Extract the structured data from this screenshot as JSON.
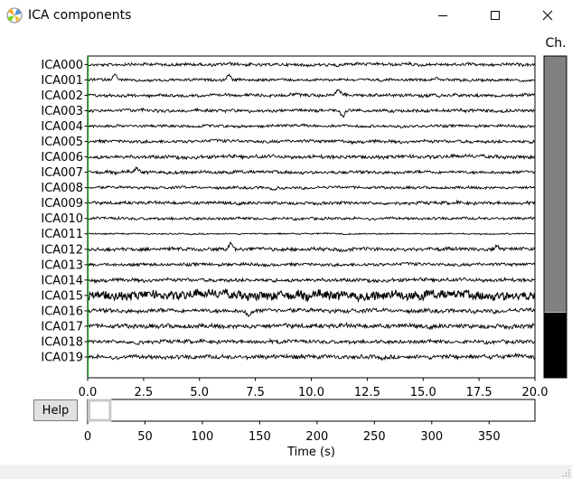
{
  "window": {
    "title": "ICA components",
    "icon": "matplotlib-icon",
    "controls": [
      "minimize-icon",
      "maximize-icon",
      "close-icon"
    ]
  },
  "channel_scrollbar": {
    "label": "Ch."
  },
  "help_button": {
    "label": "Help"
  },
  "colors": {
    "trace": "#000000",
    "cursor_line": "#00a000",
    "scroll_thumb": "#808080",
    "scroll_bottom": "#000000",
    "time_scroll_box": "#c8c8c8"
  },
  "chart_data": [
    {
      "type": "line",
      "ylim": [
        0,
        20
      ],
      "xlim": [
        0.0,
        20.0
      ],
      "xticks": [
        "0.0",
        "2.5",
        "5.0",
        "7.5",
        "10.0",
        "12.5",
        "15.0",
        "17.5",
        "20.0"
      ],
      "yticks": [
        "ICA000",
        "ICA001",
        "ICA002",
        "ICA003",
        "ICA004",
        "ICA005",
        "ICA006",
        "ICA007",
        "ICA008",
        "ICA009",
        "ICA010",
        "ICA011",
        "ICA012",
        "ICA013",
        "ICA014",
        "ICA015",
        "ICA016",
        "ICA017",
        "ICA018",
        "ICA019"
      ],
      "channel_noise": [
        0.35,
        0.3,
        0.35,
        0.35,
        0.3,
        0.35,
        0.4,
        0.35,
        0.3,
        0.35,
        0.3,
        0.15,
        0.4,
        0.35,
        0.4,
        1.0,
        0.45,
        0.5,
        0.4,
        0.45
      ],
      "events": [
        {
          "channel": 1,
          "time": 1.2,
          "amplitude": -0.9
        },
        {
          "channel": 1,
          "time": 6.3,
          "amplitude": -0.7
        },
        {
          "channel": 1,
          "time": 15.6,
          "amplitude": -0.4
        },
        {
          "channel": 2,
          "time": 11.2,
          "amplitude": -0.6
        },
        {
          "channel": 3,
          "time": 11.4,
          "amplitude": 0.8
        },
        {
          "channel": 7,
          "time": 2.2,
          "amplitude": -0.5
        },
        {
          "channel": 8,
          "time": 8.3,
          "amplitude": 0.4
        },
        {
          "channel": 12,
          "time": 6.4,
          "amplitude": -0.7
        },
        {
          "channel": 12,
          "time": 18.3,
          "amplitude": -0.4
        },
        {
          "channel": 16,
          "time": 7.2,
          "amplitude": 0.5
        },
        {
          "channel": 18,
          "time": 2.2,
          "amplitude": 0.3
        }
      ],
      "cursor_time": 0.0
    },
    {
      "type": "line",
      "xlim": [
        0,
        390
      ],
      "xticks": [
        "0",
        "50",
        "100",
        "150",
        "200",
        "250",
        "300",
        "350"
      ],
      "xlabel": "Time (s)",
      "window_start": 0,
      "window_length": 20
    }
  ]
}
